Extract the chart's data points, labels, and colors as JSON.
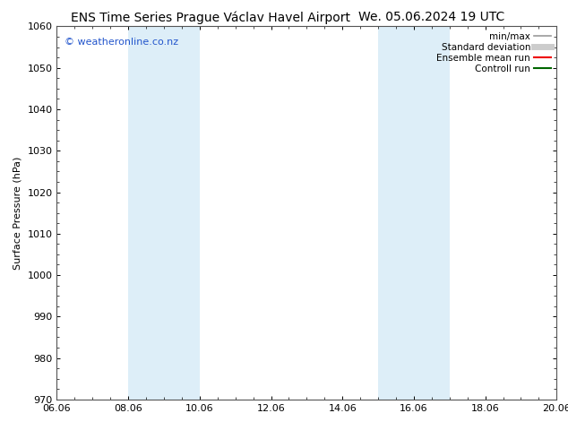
{
  "title_left": "ENS Time Series Prague Václav Havel Airport",
  "title_right": "We. 05.06.2024 19 UTC",
  "ylabel": "Surface Pressure (hPa)",
  "ylim": [
    970,
    1060
  ],
  "yticks": [
    970,
    980,
    990,
    1000,
    1010,
    1020,
    1030,
    1040,
    1050,
    1060
  ],
  "xlim_start": 0.0,
  "xlim_end": 14.0,
  "xtick_labels": [
    "06.06",
    "08.06",
    "10.06",
    "12.06",
    "14.06",
    "16.06",
    "18.06",
    "20.06"
  ],
  "xtick_positions": [
    0,
    2,
    4,
    6,
    8,
    10,
    12,
    14
  ],
  "shaded_bands": [
    {
      "xmin": 2.0,
      "xmax": 4.0,
      "color": "#ddeef8"
    },
    {
      "xmin": 9.0,
      "xmax": 11.0,
      "color": "#ddeef8"
    }
  ],
  "copyright_text": "© weatheronline.co.nz",
  "copyright_color": "#2255cc",
  "background_color": "#ffffff",
  "legend_items": [
    {
      "label": "min/max",
      "color": "#999999",
      "lw": 1.2
    },
    {
      "label": "Standard deviation",
      "color": "#cccccc",
      "lw": 5
    },
    {
      "label": "Ensemble mean run",
      "color": "#ee0000",
      "lw": 1.5
    },
    {
      "label": "Controll run",
      "color": "#006600",
      "lw": 1.5
    }
  ],
  "title_fontsize": 10,
  "ylabel_fontsize": 8,
  "tick_fontsize": 8,
  "copyright_fontsize": 8,
  "legend_fontsize": 7.5
}
